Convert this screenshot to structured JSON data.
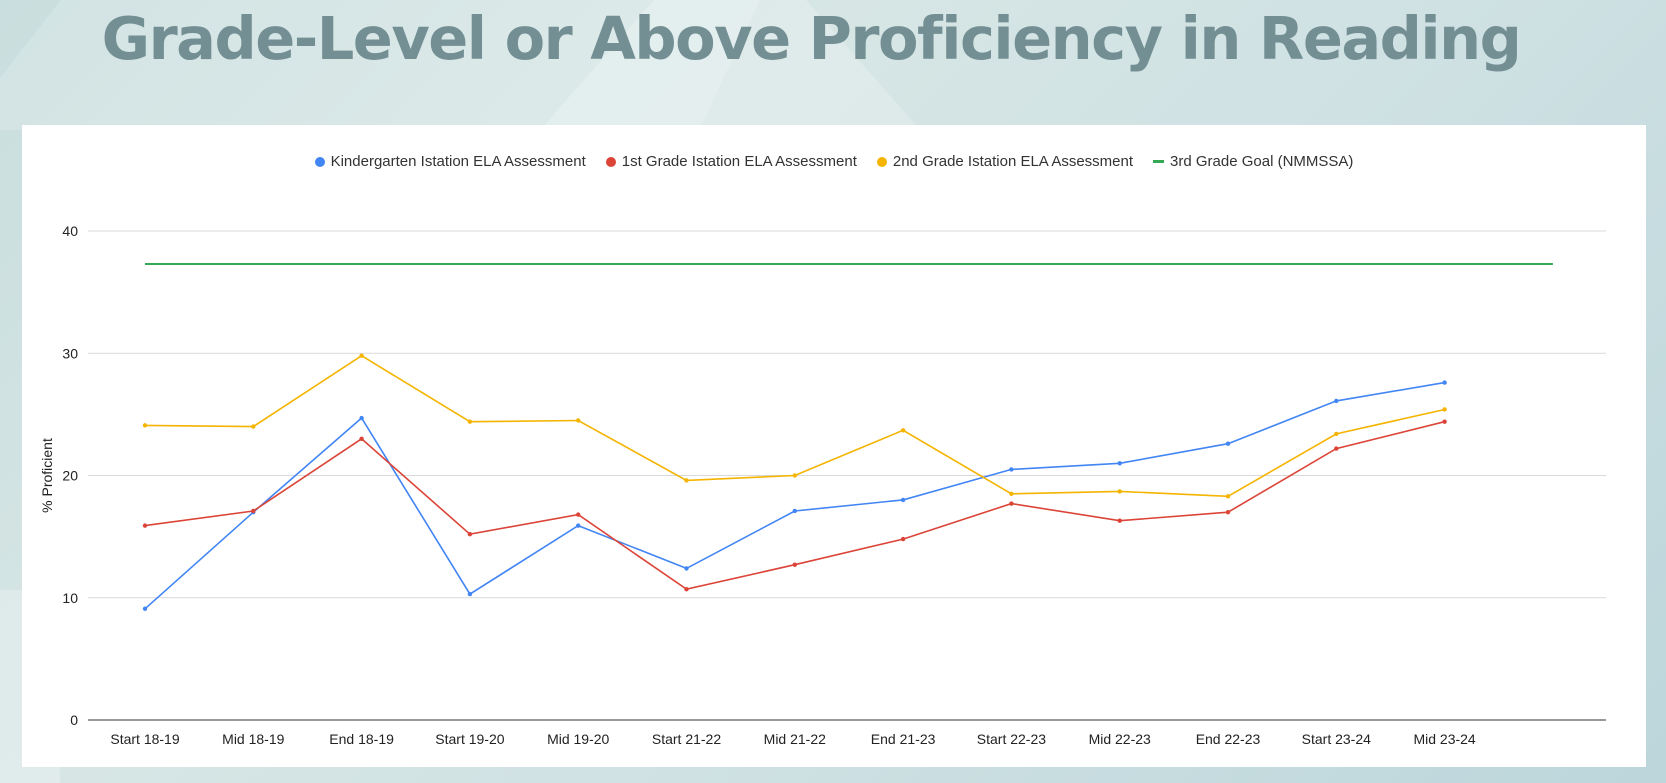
{
  "page": {
    "title": "Grade-Level or Above Proficiency in Reading"
  },
  "chart_data": {
    "type": "line",
    "title": "",
    "xlabel": "",
    "ylabel": "% Proficient",
    "ylim": [
      0,
      40
    ],
    "yticks": [
      0,
      10,
      20,
      30,
      40
    ],
    "grid": true,
    "legend_position": "top-center",
    "categories": [
      "Start 18-19",
      "Mid 18-19",
      "End 18-19",
      "Start 19-20",
      "Mid 19-20",
      "Start 21-22",
      "Mid 21-22",
      "End 21-23",
      "Start 22-23",
      "Mid 22-23",
      "End 22-23",
      "Start 23-24",
      "Mid 23-24",
      ""
    ],
    "series": [
      {
        "name": "Kindergarten Istation ELA Assessment",
        "color": "#4285f4",
        "marker": "dot",
        "values": [
          9.1,
          17.0,
          24.7,
          10.3,
          15.9,
          12.4,
          17.1,
          18.0,
          20.5,
          21.0,
          22.6,
          26.1,
          27.6,
          null
        ]
      },
      {
        "name": "1st Grade Istation ELA Assessment",
        "color": "#db4437",
        "marker": "dot",
        "values": [
          15.9,
          17.1,
          23.0,
          15.2,
          16.8,
          10.7,
          12.7,
          14.8,
          17.7,
          16.3,
          17.0,
          22.2,
          24.4,
          null
        ]
      },
      {
        "name": "2nd Grade Istation ELA Assessment",
        "color": "#f4b400",
        "marker": "dot",
        "values": [
          24.1,
          24.0,
          29.8,
          24.4,
          24.5,
          19.6,
          20.0,
          23.7,
          18.5,
          18.7,
          18.3,
          23.4,
          25.4,
          null
        ]
      },
      {
        "name": "3rd Grade Goal (NMMSSA)",
        "color": "#34a853",
        "marker": "line",
        "values": [
          37.3,
          37.3,
          37.3,
          37.3,
          37.3,
          37.3,
          37.3,
          37.3,
          37.3,
          37.3,
          37.3,
          37.3,
          37.3,
          37.3
        ]
      }
    ]
  }
}
